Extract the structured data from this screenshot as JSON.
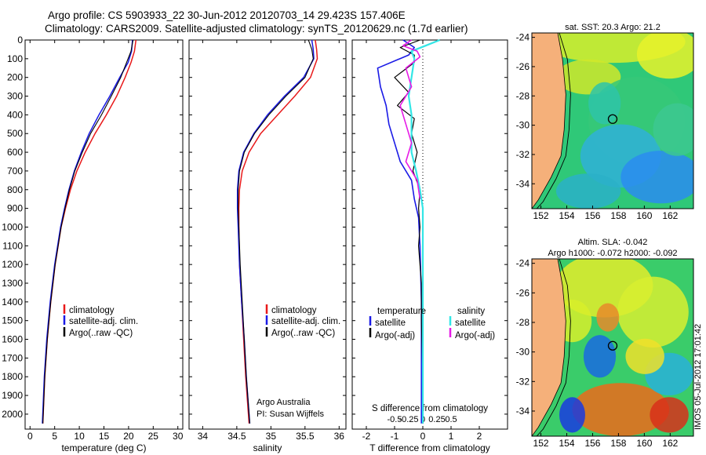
{
  "title_line1": "Argo profile: CS 5903933_22 30-Jun-2012 20120703_14 29.423S 157.406E",
  "title_line2": "Climatology: CARS2009. Satellite-adjusted climatology: synTS_20120629.nc (1.7d earlier)",
  "side_stamp": "IMOS 05-Jul-2012 17:01:42",
  "colors": {
    "clim": "#e8191a",
    "sat": "#1a1ae6",
    "argo": "#000000",
    "sal_sat": "#33e6e6",
    "sal_argo": "#e61ae6"
  },
  "chart_data": [
    {
      "id": "temp",
      "type": "line",
      "xlabel": "temperature (deg C)",
      "xlim": [
        -1,
        31
      ],
      "ylim": [
        0,
        2080
      ],
      "xticks": [
        0,
        5,
        10,
        15,
        20,
        25,
        30
      ],
      "yticks": [
        0,
        100,
        200,
        300,
        400,
        500,
        600,
        700,
        800,
        900,
        1000,
        1100,
        1200,
        1300,
        1400,
        1500,
        1600,
        1700,
        1800,
        1900,
        2000
      ],
      "legend": [
        "climatology",
        "satellite-adj. clim.",
        "Argo(..raw -QC)"
      ],
      "series": [
        {
          "name": "climatology",
          "depth": [
            0,
            60,
            120,
            200,
            300,
            400,
            500,
            600,
            700,
            800,
            900,
            1000,
            1200,
            1400,
            1600,
            1800,
            2050
          ],
          "values": [
            21.5,
            21.2,
            20.5,
            19.3,
            17.6,
            15.5,
            13.2,
            11.2,
            9.5,
            8.2,
            7.2,
            6.3,
            5.1,
            4.2,
            3.5,
            3.0,
            2.6
          ]
        },
        {
          "name": "satellite-adj. clim.",
          "depth": [
            0,
            60,
            120,
            200,
            300,
            400,
            500,
            600,
            700,
            800,
            900,
            1000,
            1200,
            1400,
            1600,
            1800,
            2050
          ],
          "values": [
            20.8,
            20.6,
            19.9,
            18.2,
            16.2,
            14.0,
            12.0,
            10.4,
            9.0,
            7.9,
            7.0,
            6.2,
            5.0,
            4.1,
            3.4,
            2.9,
            2.5
          ]
        },
        {
          "name": "Argo(..raw -QC)",
          "depth": [
            0,
            60,
            120,
            200,
            300,
            400,
            500,
            600,
            700,
            800,
            900,
            1000,
            1200,
            1400,
            1600,
            1800,
            2050
          ],
          "values": [
            20.9,
            20.5,
            19.6,
            18.4,
            16.5,
            14.5,
            12.3,
            10.6,
            9.1,
            8.0,
            7.1,
            6.3,
            5.1,
            4.2,
            3.5,
            3.0,
            2.6
          ]
        }
      ]
    },
    {
      "id": "sal",
      "type": "line",
      "xlabel": "salinity",
      "xlim": [
        33.8,
        36.1
      ],
      "ylim": [
        0,
        2080
      ],
      "xticks": [
        34,
        34.5,
        35,
        35.5,
        36
      ],
      "legend": [
        "climatology",
        "satellite-adj. clim.",
        "Argo(..raw -QC)"
      ],
      "annotation": [
        "Argo Australia",
        "PI: Susan Wijffels"
      ],
      "series": [
        {
          "name": "climatology",
          "depth": [
            0,
            50,
            100,
            200,
            300,
            400,
            500,
            600,
            700,
            800,
            900,
            1000,
            1200,
            1400,
            1600,
            1800,
            2050
          ],
          "values": [
            35.65,
            35.67,
            35.68,
            35.58,
            35.35,
            35.1,
            34.85,
            34.68,
            34.58,
            34.54,
            34.53,
            34.53,
            34.54,
            34.57,
            34.6,
            34.63,
            34.68
          ]
        },
        {
          "name": "satellite-adj. clim.",
          "depth": [
            0,
            50,
            100,
            200,
            300,
            400,
            500,
            600,
            700,
            800,
            900,
            1000,
            1200,
            1400,
            1600,
            1800,
            2050
          ],
          "values": [
            35.6,
            35.62,
            35.63,
            35.48,
            35.2,
            34.95,
            34.75,
            34.6,
            34.53,
            34.51,
            34.51,
            34.52,
            34.54,
            34.57,
            34.61,
            34.64,
            34.69
          ]
        },
        {
          "name": "Argo(..raw -QC)",
          "depth": [
            0,
            50,
            100,
            200,
            300,
            400,
            500,
            600,
            700,
            800,
            900,
            1000,
            1200,
            1400,
            1600,
            1800,
            2050
          ],
          "values": [
            35.55,
            35.6,
            35.62,
            35.5,
            35.22,
            34.97,
            34.76,
            34.61,
            34.54,
            34.52,
            34.52,
            34.53,
            34.55,
            34.58,
            34.61,
            34.64,
            34.69
          ]
        }
      ]
    },
    {
      "id": "diff",
      "type": "line",
      "xlabel": "T difference from climatology",
      "xlabel_top": "S difference from climatology",
      "xlim": [
        -2.5,
        3
      ],
      "ylim": [
        0,
        2080
      ],
      "xticks_T": [
        -2,
        -1,
        0,
        1,
        2
      ],
      "xticks_S": [
        "-0.5",
        "-0.25",
        "0",
        "0.25",
        "0.5"
      ],
      "legend_T": {
        "header": "temperature",
        "items": [
          "satellite",
          "Argo(-adj)"
        ]
      },
      "legend_S": {
        "header": "salinity",
        "items": [
          "satellite",
          "Argo(-adj)"
        ]
      },
      "series": [
        {
          "name": "temperature satellite",
          "depth": [
            0,
            40,
            80,
            150,
            250,
            350,
            450,
            550,
            650,
            750,
            850,
            950,
            1100,
            1400,
            1700,
            2050
          ],
          "values": [
            -0.7,
            -0.3,
            -0.5,
            -1.6,
            -1.5,
            -1.3,
            -1.2,
            -1.0,
            -0.8,
            -0.4,
            -0.3,
            -0.15,
            -0.1,
            -0.05,
            -0.05,
            -0.05
          ]
        },
        {
          "name": "temperature Argo(-adj)",
          "depth": [
            0,
            40,
            80,
            120,
            200,
            280,
            350,
            420,
            500,
            600,
            700,
            800,
            900,
            1000,
            1100,
            1200,
            1300,
            1500,
            1800,
            2050
          ],
          "values": [
            -0.1,
            -0.8,
            -0.3,
            -0.3,
            -1.0,
            -0.5,
            -0.9,
            -0.3,
            -0.4,
            -0.2,
            -0.35,
            -0.1,
            -0.15,
            -0.1,
            -0.15,
            -0.1,
            -0.05,
            -0.05,
            0,
            0
          ]
        },
        {
          "name": "salinity satellite",
          "depth": [
            0,
            30,
            60,
            100,
            200,
            300,
            400,
            500,
            600,
            700,
            800,
            900,
            1100,
            1500,
            2050
          ],
          "values": [
            0.3,
            0.05,
            -0.2,
            -0.15,
            -0.2,
            -0.25,
            -0.2,
            -0.2,
            -0.2,
            -0.12,
            -0.05,
            0,
            0,
            0,
            0
          ]
        },
        {
          "name": "salinity Argo(-adj)",
          "depth": [
            0,
            30,
            60,
            90,
            150,
            250,
            350,
            450,
            550,
            650,
            750,
            850
          ],
          "values": [
            -0.2,
            -0.35,
            -0.1,
            -0.05,
            -0.3,
            -0.2,
            -0.4,
            -0.3,
            -0.2,
            -0.3,
            -0.1,
            -0.05
          ]
        }
      ]
    },
    {
      "id": "map_sst",
      "type": "heatmap",
      "title": "sat. SST: 20.3  Argo: 21.2",
      "xticks": [
        152,
        154,
        156,
        158,
        160,
        162
      ],
      "yticks": [
        -24,
        -26,
        -28,
        -30,
        -32,
        -34
      ]
    },
    {
      "id": "map_sla",
      "type": "heatmap",
      "title1": "Altim. SLA: -0.042",
      "title2": "Argo h1000: -0.072 h2000: -0.092",
      "xticks": [
        152,
        154,
        156,
        158,
        160,
        162
      ],
      "yticks": [
        -24,
        -26,
        -28,
        -30,
        -32,
        -34
      ]
    }
  ]
}
